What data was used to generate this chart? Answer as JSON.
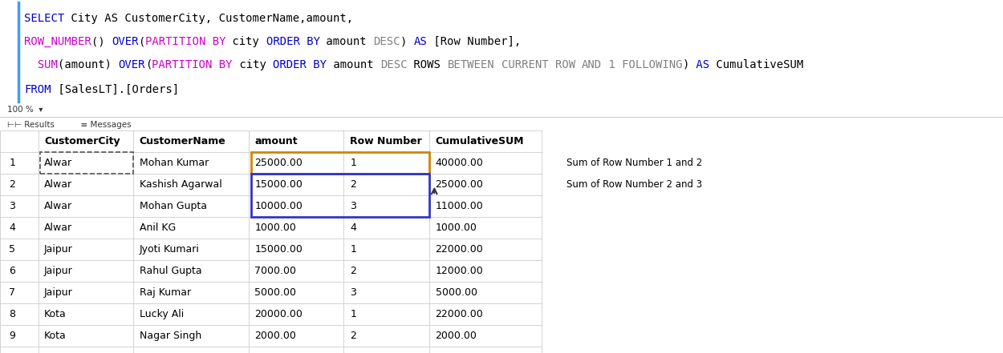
{
  "sql_lines": [
    {
      "parts": [
        {
          "text": "SELECT",
          "color": "#0000cc"
        },
        {
          "text": " City AS CustomerCity, CustomerName,amount,",
          "color": "#000000"
        }
      ]
    },
    {
      "parts": [
        {
          "text": "ROW_NUMBER",
          "color": "#cc00cc"
        },
        {
          "text": "() ",
          "color": "#000000"
        },
        {
          "text": "OVER",
          "color": "#0000cc"
        },
        {
          "text": "(",
          "color": "#000000"
        },
        {
          "text": "PARTITION BY",
          "color": "#cc00cc"
        },
        {
          "text": " city ",
          "color": "#000000"
        },
        {
          "text": "ORDER BY",
          "color": "#0000cc"
        },
        {
          "text": " amount ",
          "color": "#000000"
        },
        {
          "text": "DESC",
          "color": "#808080"
        },
        {
          "text": ") ",
          "color": "#000000"
        },
        {
          "text": "AS",
          "color": "#0000cc"
        },
        {
          "text": " [Row Number],",
          "color": "#000000"
        }
      ]
    },
    {
      "parts": [
        {
          "text": "  SUM",
          "color": "#cc00cc"
        },
        {
          "text": "(amount) ",
          "color": "#000000"
        },
        {
          "text": "OVER",
          "color": "#0000cc"
        },
        {
          "text": "(",
          "color": "#000000"
        },
        {
          "text": "PARTITION BY",
          "color": "#cc00cc"
        },
        {
          "text": " city ",
          "color": "#000000"
        },
        {
          "text": "ORDER BY",
          "color": "#0000cc"
        },
        {
          "text": " amount ",
          "color": "#000000"
        },
        {
          "text": "DESC",
          "color": "#808080"
        },
        {
          "text": " ROWS ",
          "color": "#000000"
        },
        {
          "text": "BETWEEN",
          "color": "#808080"
        },
        {
          "text": " ",
          "color": "#000000"
        },
        {
          "text": "CURRENT ROW",
          "color": "#808080"
        },
        {
          "text": " ",
          "color": "#000000"
        },
        {
          "text": "AND",
          "color": "#808080"
        },
        {
          "text": " 1 FOLLOWING",
          "color": "#808080"
        },
        {
          "text": ")",
          "color": "#000000"
        },
        {
          "text": " AS",
          "color": "#0000cc"
        },
        {
          "text": " CumulativeSUM",
          "color": "#000000"
        }
      ]
    },
    {
      "parts": [
        {
          "text": "FROM",
          "color": "#0000cc"
        },
        {
          "text": " [SalesLT].[Orders]",
          "color": "#000000"
        }
      ]
    }
  ],
  "table_rows": [
    [
      "1",
      "Alwar",
      "Mohan Kumar",
      "25000.00",
      "1",
      "40000.00"
    ],
    [
      "2",
      "Alwar",
      "Kashish Agarwal",
      "15000.00",
      "2",
      "25000.00"
    ],
    [
      "3",
      "Alwar",
      "Mohan Gupta",
      "10000.00",
      "3",
      "11000.00"
    ],
    [
      "4",
      "Alwar",
      "Anil KG",
      "1000.00",
      "4",
      "1000.00"
    ],
    [
      "5",
      "Jaipur",
      "Jyoti Kumari",
      "15000.00",
      "1",
      "22000.00"
    ],
    [
      "6",
      "Jaipur",
      "Rahul Gupta",
      "7000.00",
      "2",
      "12000.00"
    ],
    [
      "7",
      "Jaipur",
      "Raj Kumar",
      "5000.00",
      "3",
      "5000.00"
    ],
    [
      "8",
      "Kota",
      "Lucky Ali",
      "20000.00",
      "1",
      "22000.00"
    ],
    [
      "9",
      "Kota",
      "Nagar Singh",
      "2000.00",
      "2",
      "2000.00"
    ]
  ],
  "sql_font_size": 10,
  "table_font_size": 9,
  "sql_left_border_color": "#4499ff",
  "orange_color": "#cc8800",
  "blue_color": "#3333cc",
  "arrow_color": "#333333",
  "grid_color": "#cccccc",
  "annotation1": "Sum of Row Number 1 and 2",
  "annotation2": "Sum of Row Number 2 and 3"
}
